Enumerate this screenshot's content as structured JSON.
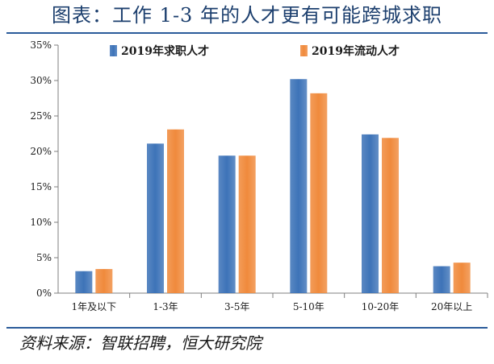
{
  "title": "图表：工作 1-3 年的人才更有可能跨城求职",
  "source": "资料来源：智联招聘，恒大研究院",
  "colors": {
    "series1": "#3d73b8",
    "series2": "#f08a3c",
    "axis": "#7f7f7f",
    "text": "#1a1a1a"
  },
  "chart_data": {
    "type": "bar",
    "categories": [
      "1年及以下",
      "1-3年",
      "3-5年",
      "5-10年",
      "10-20年",
      "20年以上"
    ],
    "series": [
      {
        "name": "2019年求职人才",
        "values": [
          3.1,
          21.1,
          19.4,
          30.2,
          22.4,
          3.8
        ]
      },
      {
        "name": "2019年流动人才",
        "values": [
          3.4,
          23.1,
          19.4,
          28.2,
          21.9,
          4.3
        ]
      }
    ],
    "yticks": [
      "0%",
      "5%",
      "10%",
      "15%",
      "20%",
      "25%",
      "30%",
      "35%"
    ],
    "ylim": [
      0,
      35
    ],
    "legend_position": "top",
    "grid": false
  }
}
